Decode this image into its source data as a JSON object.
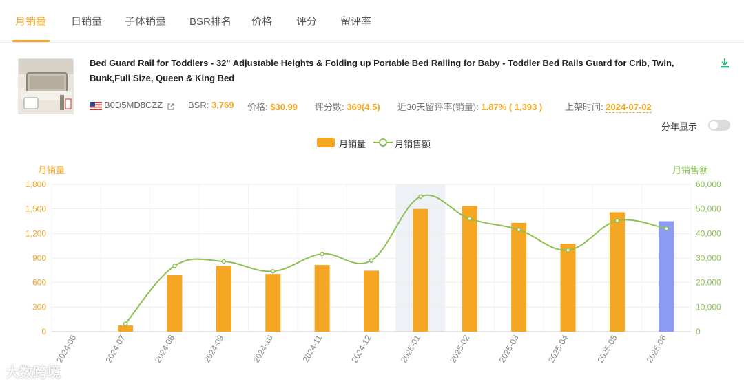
{
  "tabs": [
    "月销量",
    "日销量",
    "子体销量",
    "BSR排名",
    "价格",
    "评分",
    "留评率"
  ],
  "active_tab": 0,
  "product": {
    "title": "Bed Guard Rail for Toddlers - 32\" Adjustable Heights & Folding up Portable Bed Railing for Baby - Toddler Bed Rails Guard for Crib, Twin, Bunk,Full Size, Queen & King Bed",
    "asin": "B0D5MD8CZZ",
    "bsr_label": "BSR:",
    "bsr_value": "3,769",
    "price_label": "价格:",
    "price_value": "$30.99",
    "rating_label": "评分数:",
    "rating_value": "369(4.5)",
    "review_rate_label": "近30天留评率(销量):",
    "review_rate_value": "1.87% ( 1,393 )",
    "listed_label": "上架时间:",
    "listed_value": "2024-07-02"
  },
  "toggle_label": "分年显示",
  "watermark": "大数跨境",
  "chart_data": {
    "type": "bar",
    "categories": [
      "2024-06",
      "2024-07",
      "2024-08",
      "2024-09",
      "2024-10",
      "2024-11",
      "2024-12",
      "2025-01",
      "2025-02",
      "2025-03",
      "2025-04",
      "2025-05",
      "2025-06"
    ],
    "series": [
      {
        "name": "月销量",
        "type": "bar",
        "axis": "left",
        "color": "#f5a623",
        "values": [
          0,
          75,
          690,
          805,
          705,
          815,
          745,
          1500,
          1535,
          1330,
          1075,
          1460,
          1350
        ]
      },
      {
        "name": "月销售额",
        "type": "line",
        "axis": "right",
        "color": "#8cc152",
        "values": [
          null,
          3200,
          26800,
          28600,
          24600,
          31700,
          29000,
          55000,
          46000,
          41500,
          33200,
          45200,
          42000
        ]
      }
    ],
    "highlight_last_bar_color": "#8c9cf5",
    "hover_category": "2025-01",
    "ylabel_left": "月销量",
    "ylabel_right": "月销售额",
    "ylim_left": [
      0,
      1800
    ],
    "yticks_left": [
      "0",
      "300",
      "600",
      "900",
      "1,200",
      "1,500",
      "1,800"
    ],
    "ylim_right": [
      0,
      60000
    ],
    "yticks_right": [
      "0",
      "10,000",
      "20,000",
      "30,000",
      "40,000",
      "50,000",
      "60,000"
    ],
    "legend": "top-center",
    "grid": true
  }
}
